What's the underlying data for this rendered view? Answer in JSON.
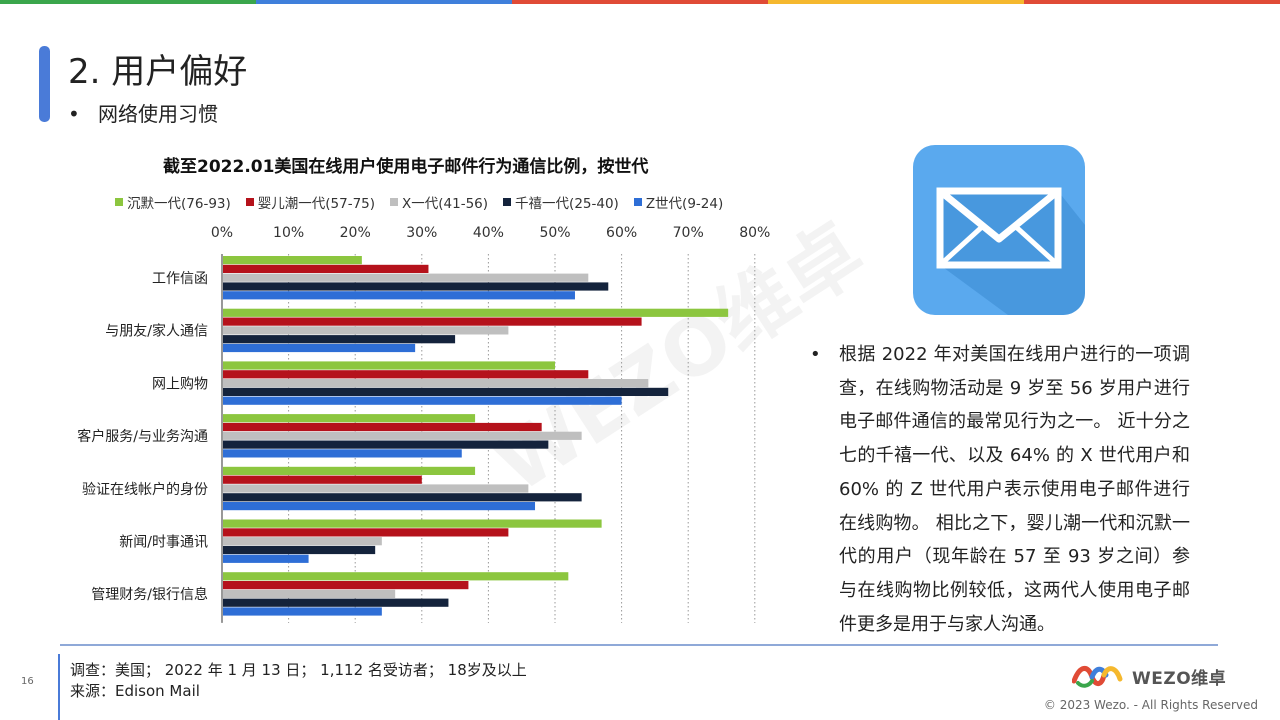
{
  "page": {
    "title": "2. 用户偏好",
    "subtitle_bullet": "•",
    "subtitle": "网络使用习惯",
    "page_number": "16",
    "watermark": "WEZO维卓",
    "top_bar_colors": [
      "#3aa64c",
      "#3f7fdb",
      "#e04b36",
      "#f5b82e",
      "#e04b36"
    ]
  },
  "chart_data": {
    "type": "bar",
    "orientation": "horizontal",
    "title": "截至2022.01美国在线用户使用电子邮件行为通信比例，按世代",
    "categories": [
      "工作信函",
      "与朋友/家人通信",
      "网上购物",
      "客户服务/与业务沟通",
      "验证在线帐户的身份",
      "新闻/时事通讯",
      "管理财务/银行信息"
    ],
    "series": [
      {
        "name": "沉默一代(76-93)",
        "color": "#8cc63f",
        "values": [
          21,
          76,
          50,
          38,
          38,
          57,
          52
        ]
      },
      {
        "name": "婴儿潮一代(57-75)",
        "color": "#b5121b",
        "values": [
          31,
          63,
          55,
          48,
          30,
          43,
          37
        ]
      },
      {
        "name": "X一代(41-56)",
        "color": "#bfbfbf",
        "values": [
          55,
          43,
          64,
          54,
          46,
          24,
          26
        ]
      },
      {
        "name": "千禧一代(25-40)",
        "color": "#14233c",
        "values": [
          58,
          35,
          67,
          49,
          54,
          23,
          34
        ]
      },
      {
        "name": "Z世代(9-24)",
        "color": "#2e6ed6",
        "values": [
          53,
          29,
          60,
          36,
          47,
          13,
          24
        ]
      }
    ],
    "xaxis": {
      "range": [
        0,
        80
      ],
      "ticks": [
        "0%",
        "10%",
        "20%",
        "30%",
        "40%",
        "50%",
        "60%",
        "70%",
        "80%"
      ],
      "position": "top",
      "grid": "dotted"
    },
    "legend_position": "top"
  },
  "description": {
    "bullet": "•",
    "text": "根据 2022 年对美国在线用户进行的一项调查，在线购物活动是 9 岁至 56 岁用户进行电子邮件通信的最常见行为之一。 近十分之七的千禧一代、以及 64% 的 X 世代用户和 60% 的 Z 世代用户表示使用电子邮件进行在线购物。 相比之下，婴儿潮一代和沉默一代的用户（现年龄在 57 至 93 岁之间）参与在线购物比例较低，这两代人使用电子邮件更多是用于与家人沟通。"
  },
  "mail_icon": {
    "name": "mail-icon",
    "background": "#5aa9ee"
  },
  "footer": {
    "survey": "调查：美国； 2022 年 1 月 13 日； 1,112 名受访者； 18岁及以上",
    "source": "来源：Edison Mail",
    "brand": "WEZO维卓",
    "copyright": "© 2023 Wezo. - All Rights Reserved"
  }
}
